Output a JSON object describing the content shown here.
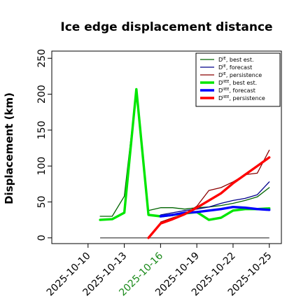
{
  "chart_data": {
    "type": "line",
    "title": "Ice edge displacement distance",
    "xlabel": "",
    "ylabel": "Displacement (km)",
    "x_type": "date",
    "xlim": [
      "2025-10-07",
      "2025-10-26"
    ],
    "ylim": [
      -8,
      260
    ],
    "yticks": [
      0,
      50,
      100,
      150,
      200,
      250
    ],
    "xticks": [
      "2025-10-10",
      "2025-10-13",
      "2025-10-16",
      "2025-10-19",
      "2025-10-22",
      "2025-10-25"
    ],
    "highlighted_xtick": "2025-10-16",
    "highlight_color": "#1a8a1a",
    "grid": false,
    "legend_position": "top-right",
    "reference_line": {
      "y": 0,
      "x_start": "2025-10-11",
      "x_end": "2025-10-25",
      "color": "#555555"
    },
    "series": [
      {
        "name": "D^IE, best est.",
        "legend_main": "D",
        "legend_sup": "IE",
        "legend_suffix": ", best est.",
        "color": "#006400",
        "width": 1.3,
        "x": [
          "2025-10-11",
          "2025-10-12",
          "2025-10-13",
          "2025-10-14",
          "2025-10-15",
          "2025-10-16",
          "2025-10-17",
          "2025-10-18",
          "2025-10-19",
          "2025-10-20",
          "2025-10-21",
          "2025-10-22",
          "2025-10-23",
          "2025-10-24",
          "2025-10-25"
        ],
        "y": [
          30,
          30,
          58,
          205,
          38,
          42,
          42,
          40,
          42,
          43,
          45,
          48,
          52,
          57,
          70
        ]
      },
      {
        "name": "D^IE, forecast",
        "legend_main": "D",
        "legend_sup": "IE",
        "legend_suffix": ", forecast",
        "color": "#00008b",
        "width": 1.3,
        "x": [
          "2025-10-16",
          "2025-10-17",
          "2025-10-18",
          "2025-10-19",
          "2025-10-20",
          "2025-10-21",
          "2025-10-22",
          "2025-10-23",
          "2025-10-24",
          "2025-10-25"
        ],
        "y": [
          32,
          35,
          38,
          40,
          43,
          48,
          52,
          55,
          60,
          78
        ]
      },
      {
        "name": "D^IE, persistence",
        "legend_main": "D",
        "legend_sup": "IE",
        "legend_suffix": ", persistence",
        "color": "#8b0000",
        "width": 1.3,
        "x": [
          "2025-10-16",
          "2025-10-17",
          "2025-10-18",
          "2025-10-19",
          "2025-10-20",
          "2025-10-21",
          "2025-10-22",
          "2025-10-23",
          "2025-10-24",
          "2025-10-25"
        ],
        "y": [
          22,
          28,
          33,
          44,
          66,
          70,
          78,
          88,
          90,
          122
        ]
      },
      {
        "name": "D^IIEE, best est.",
        "legend_main": "D",
        "legend_sup": "IIEE",
        "legend_suffix": ", best est.",
        "color": "#00e600",
        "width": 3.4,
        "x": [
          "2025-10-11",
          "2025-10-12",
          "2025-10-13",
          "2025-10-14",
          "2025-10-15",
          "2025-10-16",
          "2025-10-17",
          "2025-10-18",
          "2025-10-19",
          "2025-10-20",
          "2025-10-21",
          "2025-10-22",
          "2025-10-23",
          "2025-10-24",
          "2025-10-25"
        ],
        "y": [
          25,
          26,
          35,
          207,
          32,
          30,
          32,
          34,
          36,
          25,
          28,
          38,
          40,
          40,
          41
        ]
      },
      {
        "name": "D^IIEE, forecast",
        "legend_main": "D",
        "legend_sup": "IIEE",
        "legend_suffix": ", forecast",
        "color": "#0000ff",
        "width": 3.4,
        "x": [
          "2025-10-16",
          "2025-10-17",
          "2025-10-18",
          "2025-10-19",
          "2025-10-20",
          "2025-10-21",
          "2025-10-22",
          "2025-10-23",
          "2025-10-24",
          "2025-10-25"
        ],
        "y": [
          30,
          32,
          35,
          36,
          38,
          40,
          43,
          42,
          40,
          39
        ]
      },
      {
        "name": "D^IIEE, persistence",
        "legend_main": "D",
        "legend_sup": "IIEE",
        "legend_suffix": ", persistence",
        "color": "#ff0000",
        "width": 3.4,
        "x": [
          "2025-10-15",
          "2025-10-16",
          "2025-10-17",
          "2025-10-18",
          "2025-10-19",
          "2025-10-20",
          "2025-10-21",
          "2025-10-22",
          "2025-10-23",
          "2025-10-24",
          "2025-10-25"
        ],
        "y": [
          0,
          20,
          26,
          33,
          42,
          52,
          62,
          76,
          88,
          100,
          112
        ]
      }
    ]
  }
}
